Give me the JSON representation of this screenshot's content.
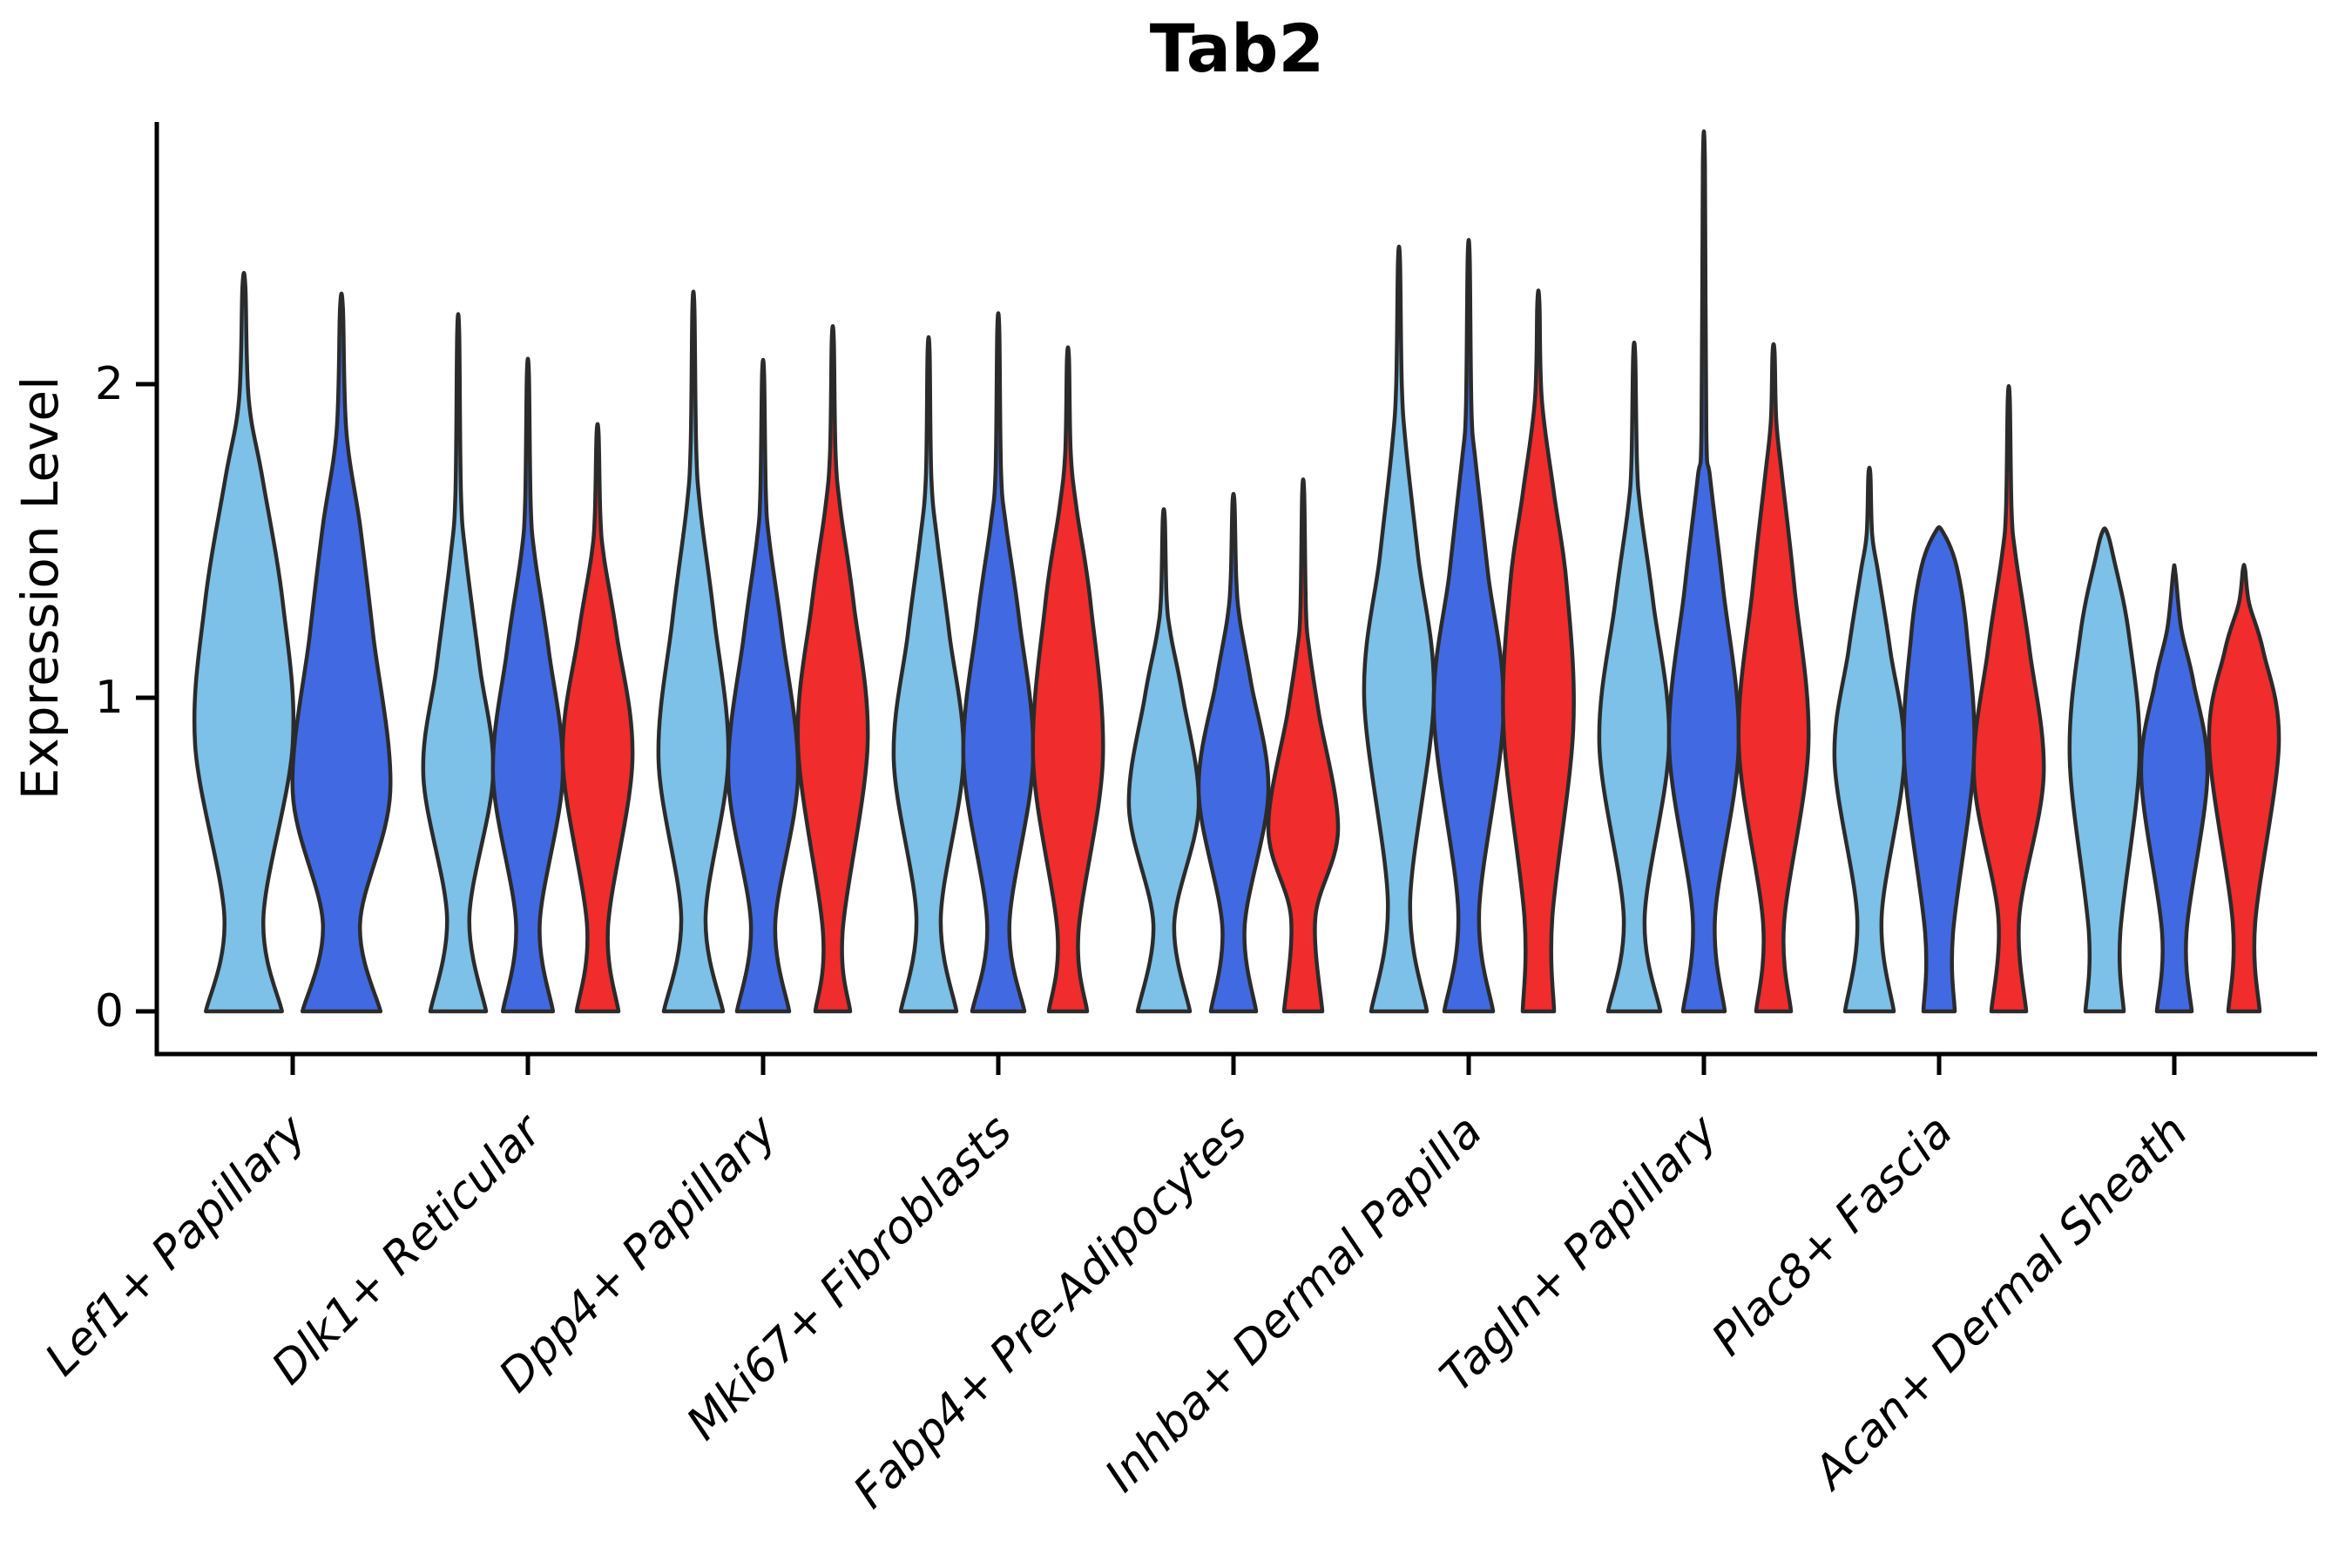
{
  "chart_data": {
    "type": "violin",
    "title": "Tab2",
    "ylabel": "Expression Level",
    "xlabel": "",
    "yticks": [
      "0",
      "1",
      "2"
    ],
    "ylim": [
      0,
      2.85
    ],
    "grid": false,
    "legend": "none",
    "edge_color": "#2b2b2b",
    "hue_colors": {
      "light-blue": "#7dc0e8",
      "dark-blue": "#4169e1",
      "red": "#f02c2c"
    },
    "categories": [
      {
        "label": "Lef1+ Papillary",
        "violins": [
          {
            "hue": "light-blue",
            "max": 2.31,
            "profile": [
              [
                0,
                0.78
              ],
              [
                0.3,
                0.4
              ],
              [
                0.85,
                1.0
              ],
              [
                1.3,
                0.8
              ],
              [
                1.7,
                0.38
              ],
              [
                1.95,
                0.1
              ],
              [
                2.31,
                0.03
              ]
            ]
          },
          {
            "hue": "dark-blue",
            "max": 2.24,
            "profile": [
              [
                0,
                0.8
              ],
              [
                0.28,
                0.38
              ],
              [
                0.7,
                1.0
              ],
              [
                1.2,
                0.65
              ],
              [
                1.55,
                0.38
              ],
              [
                1.85,
                0.1
              ],
              [
                2.24,
                0.03
              ]
            ]
          }
        ]
      },
      {
        "label": "Dlk1+ Reticular",
        "violins": [
          {
            "hue": "light-blue",
            "max": 2.16,
            "profile": [
              [
                0,
                0.8
              ],
              [
                0.3,
                0.32
              ],
              [
                0.75,
                1.0
              ],
              [
                1.1,
                0.62
              ],
              [
                1.45,
                0.22
              ],
              [
                1.65,
                0.08
              ],
              [
                2.16,
                0.03
              ]
            ]
          },
          {
            "hue": "dark-blue",
            "max": 2.03,
            "profile": [
              [
                0,
                0.72
              ],
              [
                0.28,
                0.34
              ],
              [
                0.75,
                1.0
              ],
              [
                1.15,
                0.6
              ],
              [
                1.45,
                0.2
              ],
              [
                1.62,
                0.08
              ],
              [
                2.03,
                0.03
              ]
            ]
          },
          {
            "hue": "red",
            "max": 1.84,
            "profile": [
              [
                0,
                0.6
              ],
              [
                0.27,
                0.3
              ],
              [
                0.8,
                1.0
              ],
              [
                1.2,
                0.55
              ],
              [
                1.45,
                0.18
              ],
              [
                1.58,
                0.08
              ],
              [
                1.84,
                0.03
              ]
            ]
          }
        ]
      },
      {
        "label": "Dpp4+ Papillary",
        "violins": [
          {
            "hue": "light-blue",
            "max": 2.24,
            "profile": [
              [
                0,
                0.85
              ],
              [
                0.3,
                0.35
              ],
              [
                0.8,
                1.0
              ],
              [
                1.25,
                0.6
              ],
              [
                1.6,
                0.2
              ],
              [
                1.8,
                0.08
              ],
              [
                2.24,
                0.03
              ]
            ]
          },
          {
            "hue": "dark-blue",
            "max": 2.03,
            "profile": [
              [
                0,
                0.75
              ],
              [
                0.28,
                0.35
              ],
              [
                0.75,
                1.0
              ],
              [
                1.2,
                0.55
              ],
              [
                1.5,
                0.18
              ],
              [
                1.65,
                0.08
              ],
              [
                2.03,
                0.03
              ]
            ]
          },
          {
            "hue": "red",
            "max": 2.14,
            "profile": [
              [
                0,
                0.5
              ],
              [
                0.25,
                0.28
              ],
              [
                0.85,
                1.0
              ],
              [
                1.3,
                0.6
              ],
              [
                1.6,
                0.22
              ],
              [
                1.78,
                0.08
              ],
              [
                2.14,
                0.03
              ]
            ]
          }
        ]
      },
      {
        "label": "Mki67+ Fibroblasts",
        "violins": [
          {
            "hue": "light-blue",
            "max": 2.1,
            "profile": [
              [
                0,
                0.8
              ],
              [
                0.3,
                0.35
              ],
              [
                0.8,
                1.0
              ],
              [
                1.2,
                0.6
              ],
              [
                1.5,
                0.25
              ],
              [
                1.7,
                0.08
              ],
              [
                2.1,
                0.03
              ]
            ]
          },
          {
            "hue": "dark-blue",
            "max": 2.17,
            "profile": [
              [
                0,
                0.75
              ],
              [
                0.28,
                0.32
              ],
              [
                0.8,
                1.0
              ],
              [
                1.25,
                0.6
              ],
              [
                1.55,
                0.22
              ],
              [
                1.72,
                0.08
              ],
              [
                2.17,
                0.03
              ]
            ]
          },
          {
            "hue": "red",
            "max": 2.08,
            "profile": [
              [
                0,
                0.55
              ],
              [
                0.25,
                0.3
              ],
              [
                0.8,
                1.0
              ],
              [
                1.3,
                0.65
              ],
              [
                1.6,
                0.25
              ],
              [
                1.78,
                0.08
              ],
              [
                2.08,
                0.03
              ]
            ]
          }
        ]
      },
      {
        "label": "Fabp4+ Pre-Adipocytes",
        "violins": [
          {
            "hue": "light-blue",
            "max": 1.57,
            "profile": [
              [
                0,
                0.75
              ],
              [
                0.28,
                0.3
              ],
              [
                0.65,
                1.0
              ],
              [
                1.0,
                0.55
              ],
              [
                1.2,
                0.2
              ],
              [
                1.32,
                0.08
              ],
              [
                1.57,
                0.03
              ]
            ]
          },
          {
            "hue": "dark-blue",
            "max": 1.62,
            "profile": [
              [
                0,
                0.65
              ],
              [
                0.27,
                0.32
              ],
              [
                0.7,
                1.0
              ],
              [
                1.05,
                0.5
              ],
              [
                1.25,
                0.18
              ],
              [
                1.38,
                0.08
              ],
              [
                1.62,
                0.03
              ]
            ]
          },
          {
            "hue": "red",
            "max": 1.65,
            "profile": [
              [
                0,
                0.55
              ],
              [
                0.3,
                0.35
              ],
              [
                0.58,
                1.0
              ],
              [
                0.95,
                0.45
              ],
              [
                1.15,
                0.18
              ],
              [
                1.28,
                0.08
              ],
              [
                1.65,
                0.03
              ]
            ]
          }
        ]
      },
      {
        "label": "Inhba+ Dermal Papilla",
        "violins": [
          {
            "hue": "light-blue",
            "max": 2.39,
            "profile": [
              [
                0,
                0.8
              ],
              [
                0.35,
                0.32
              ],
              [
                1.0,
                1.0
              ],
              [
                1.45,
                0.55
              ],
              [
                1.8,
                0.2
              ],
              [
                2.0,
                0.08
              ],
              [
                2.39,
                0.03
              ]
            ]
          },
          {
            "hue": "dark-blue",
            "max": 2.4,
            "profile": [
              [
                0,
                0.7
              ],
              [
                0.32,
                0.3
              ],
              [
                0.95,
                1.0
              ],
              [
                1.4,
                0.55
              ],
              [
                1.75,
                0.2
              ],
              [
                1.92,
                0.08
              ],
              [
                2.4,
                0.03
              ]
            ]
          },
          {
            "hue": "red",
            "max": 2.26,
            "profile": [
              [
                0,
                0.45
              ],
              [
                0.3,
                0.4
              ],
              [
                0.9,
                1.0
              ],
              [
                1.35,
                0.82
              ],
              [
                1.65,
                0.45
              ],
              [
                1.95,
                0.1
              ],
              [
                2.26,
                0.03
              ]
            ]
          }
        ]
      },
      {
        "label": "Tagln+ Papillary",
        "violins": [
          {
            "hue": "light-blue",
            "max": 2.09,
            "profile": [
              [
                0,
                0.75
              ],
              [
                0.3,
                0.3
              ],
              [
                0.85,
                1.0
              ],
              [
                1.3,
                0.55
              ],
              [
                1.6,
                0.18
              ],
              [
                1.75,
                0.08
              ],
              [
                2.09,
                0.03
              ]
            ]
          },
          {
            "hue": "dark-blue",
            "max": 2.7,
            "profile": [
              [
                0,
                0.6
              ],
              [
                0.3,
                0.32
              ],
              [
                0.85,
                1.0
              ],
              [
                1.35,
                0.55
              ],
              [
                1.7,
                0.18
              ],
              [
                1.85,
                0.07
              ],
              [
                2.7,
                0.03
              ]
            ]
          },
          {
            "hue": "red",
            "max": 2.1,
            "profile": [
              [
                0,
                0.5
              ],
              [
                0.28,
                0.3
              ],
              [
                0.85,
                1.0
              ],
              [
                1.35,
                0.6
              ],
              [
                1.7,
                0.25
              ],
              [
                1.88,
                0.08
              ],
              [
                2.1,
                0.03
              ]
            ]
          }
        ]
      },
      {
        "label": "Plac8+ Fascia",
        "violins": [
          {
            "hue": "light-blue",
            "max": 1.71,
            "profile": [
              [
                0,
                0.7
              ],
              [
                0.3,
                0.35
              ],
              [
                0.8,
                1.0
              ],
              [
                1.15,
                0.6
              ],
              [
                1.4,
                0.25
              ],
              [
                1.52,
                0.08
              ],
              [
                1.71,
                0.03
              ]
            ]
          },
          {
            "hue": "dark-blue",
            "max": 1.53,
            "profile": [
              [
                0,
                0.45
              ],
              [
                0.25,
                0.4
              ],
              [
                0.8,
                1.0
              ],
              [
                1.2,
                0.8
              ],
              [
                1.42,
                0.5
              ],
              [
                1.53,
                0.1
              ]
            ]
          },
          {
            "hue": "red",
            "max": 1.95,
            "profile": [
              [
                0,
                0.5
              ],
              [
                0.3,
                0.3
              ],
              [
                0.75,
                1.0
              ],
              [
                1.15,
                0.6
              ],
              [
                1.45,
                0.2
              ],
              [
                1.6,
                0.08
              ],
              [
                1.95,
                0.03
              ]
            ]
          }
        ]
      },
      {
        "label": "Acan+ Dermal Sheath",
        "violins": [
          {
            "hue": "light-blue",
            "max": 1.53,
            "profile": [
              [
                0,
                0.55
              ],
              [
                0.25,
                0.45
              ],
              [
                0.8,
                1.0
              ],
              [
                1.2,
                0.7
              ],
              [
                1.45,
                0.25
              ],
              [
                1.53,
                0.06
              ]
            ]
          },
          {
            "hue": "dark-blue",
            "max": 1.4,
            "profile": [
              [
                0,
                0.5
              ],
              [
                0.25,
                0.35
              ],
              [
                0.75,
                0.95
              ],
              [
                1.05,
                0.55
              ],
              [
                1.22,
                0.2
              ],
              [
                1.4,
                0.03
              ]
            ]
          },
          {
            "hue": "red",
            "max": 1.41,
            "profile": [
              [
                0,
                0.45
              ],
              [
                0.28,
                0.32
              ],
              [
                0.85,
                1.0
              ],
              [
                1.15,
                0.55
              ],
              [
                1.3,
                0.15
              ],
              [
                1.41,
                0.03
              ]
            ]
          }
        ]
      }
    ]
  }
}
